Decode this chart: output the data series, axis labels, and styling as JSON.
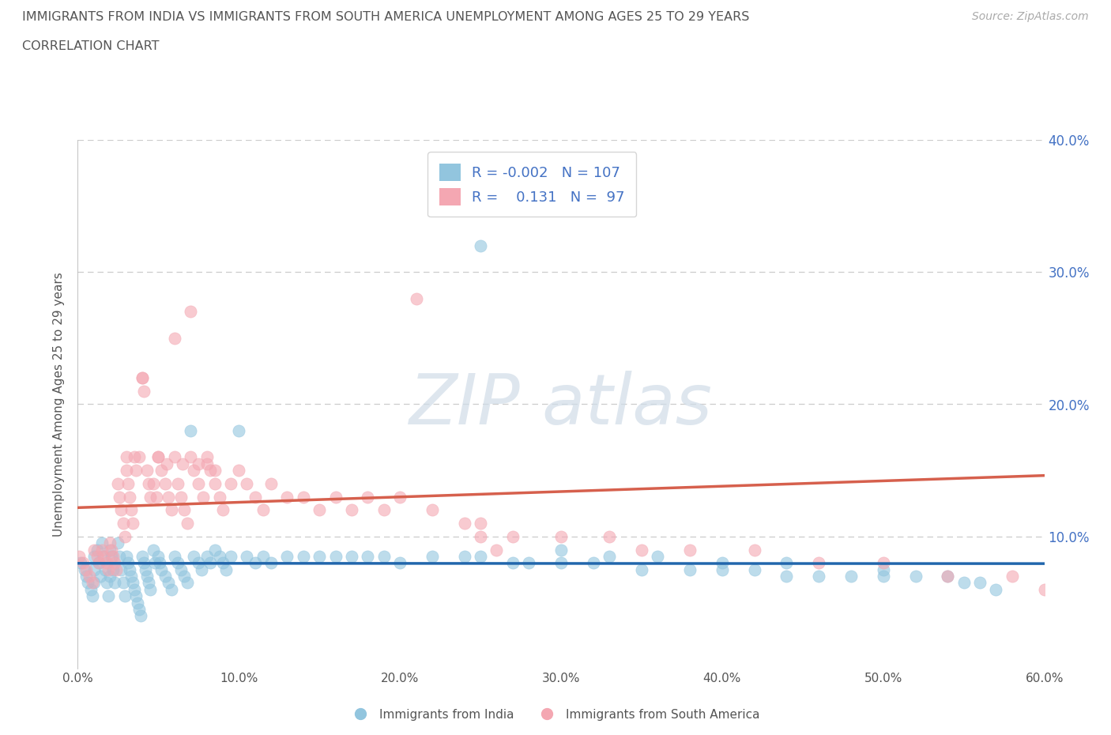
{
  "title_line1": "IMMIGRANTS FROM INDIA VS IMMIGRANTS FROM SOUTH AMERICA UNEMPLOYMENT AMONG AGES 25 TO 29 YEARS",
  "title_line2": "CORRELATION CHART",
  "source_text": "Source: ZipAtlas.com",
  "ylabel": "Unemployment Among Ages 25 to 29 years",
  "xlim": [
    0.0,
    0.6
  ],
  "ylim": [
    0.0,
    0.4
  ],
  "xticks": [
    0.0,
    0.1,
    0.2,
    0.3,
    0.4,
    0.5,
    0.6
  ],
  "yticks": [
    0.0,
    0.1,
    0.2,
    0.3,
    0.4
  ],
  "india_color": "#92c5de",
  "south_america_color": "#f4a7b2",
  "india_R": -0.002,
  "india_N": 107,
  "south_america_R": 0.131,
  "south_america_N": 97,
  "india_trend_color": "#2166ac",
  "south_america_trend_color": "#d6604d",
  "legend_india_label": "Immigrants from India",
  "legend_sa_label": "Immigrants from South America",
  "background_color": "#ffffff",
  "grid_color": "#cccccc",
  "tick_color": "#4472c4",
  "india_x": [
    0.002,
    0.004,
    0.005,
    0.006,
    0.008,
    0.009,
    0.01,
    0.01,
    0.01,
    0.012,
    0.013,
    0.014,
    0.015,
    0.016,
    0.017,
    0.018,
    0.019,
    0.02,
    0.02,
    0.021,
    0.022,
    0.023,
    0.025,
    0.026,
    0.027,
    0.028,
    0.029,
    0.03,
    0.031,
    0.032,
    0.033,
    0.034,
    0.035,
    0.036,
    0.037,
    0.038,
    0.039,
    0.04,
    0.041,
    0.042,
    0.043,
    0.044,
    0.045,
    0.047,
    0.048,
    0.05,
    0.051,
    0.052,
    0.054,
    0.056,
    0.058,
    0.06,
    0.062,
    0.064,
    0.066,
    0.068,
    0.07,
    0.072,
    0.075,
    0.077,
    0.08,
    0.082,
    0.085,
    0.088,
    0.09,
    0.092,
    0.095,
    0.1,
    0.105,
    0.11,
    0.115,
    0.12,
    0.13,
    0.14,
    0.15,
    0.16,
    0.17,
    0.18,
    0.19,
    0.2,
    0.22,
    0.24,
    0.25,
    0.27,
    0.28,
    0.3,
    0.32,
    0.35,
    0.38,
    0.4,
    0.42,
    0.44,
    0.46,
    0.48,
    0.5,
    0.52,
    0.54,
    0.55,
    0.56,
    0.57,
    0.25,
    0.3,
    0.33,
    0.36,
    0.4,
    0.44,
    0.5
  ],
  "india_y": [
    0.08,
    0.075,
    0.07,
    0.065,
    0.06,
    0.055,
    0.085,
    0.075,
    0.065,
    0.09,
    0.08,
    0.07,
    0.095,
    0.085,
    0.075,
    0.065,
    0.055,
    0.09,
    0.07,
    0.085,
    0.075,
    0.065,
    0.095,
    0.085,
    0.075,
    0.065,
    0.055,
    0.085,
    0.08,
    0.075,
    0.07,
    0.065,
    0.06,
    0.055,
    0.05,
    0.045,
    0.04,
    0.085,
    0.08,
    0.075,
    0.07,
    0.065,
    0.06,
    0.09,
    0.08,
    0.085,
    0.08,
    0.075,
    0.07,
    0.065,
    0.06,
    0.085,
    0.08,
    0.075,
    0.07,
    0.065,
    0.18,
    0.085,
    0.08,
    0.075,
    0.085,
    0.08,
    0.09,
    0.085,
    0.08,
    0.075,
    0.085,
    0.18,
    0.085,
    0.08,
    0.085,
    0.08,
    0.085,
    0.085,
    0.085,
    0.085,
    0.085,
    0.085,
    0.085,
    0.08,
    0.085,
    0.085,
    0.085,
    0.08,
    0.08,
    0.08,
    0.08,
    0.075,
    0.075,
    0.075,
    0.075,
    0.07,
    0.07,
    0.07,
    0.07,
    0.07,
    0.07,
    0.065,
    0.065,
    0.06,
    0.32,
    0.09,
    0.085,
    0.085,
    0.08,
    0.08,
    0.075
  ],
  "sa_x": [
    0.001,
    0.003,
    0.005,
    0.007,
    0.009,
    0.01,
    0.012,
    0.013,
    0.015,
    0.016,
    0.018,
    0.019,
    0.02,
    0.021,
    0.022,
    0.023,
    0.024,
    0.025,
    0.026,
    0.027,
    0.028,
    0.029,
    0.03,
    0.031,
    0.032,
    0.033,
    0.034,
    0.035,
    0.036,
    0.038,
    0.04,
    0.041,
    0.043,
    0.044,
    0.045,
    0.047,
    0.049,
    0.05,
    0.052,
    0.054,
    0.056,
    0.058,
    0.06,
    0.062,
    0.064,
    0.066,
    0.068,
    0.07,
    0.072,
    0.075,
    0.078,
    0.08,
    0.082,
    0.085,
    0.088,
    0.09,
    0.095,
    0.1,
    0.105,
    0.11,
    0.115,
    0.12,
    0.13,
    0.14,
    0.15,
    0.16,
    0.17,
    0.18,
    0.19,
    0.2,
    0.22,
    0.24,
    0.25,
    0.27,
    0.3,
    0.33,
    0.35,
    0.38,
    0.42,
    0.46,
    0.5,
    0.54,
    0.58,
    0.6,
    0.03,
    0.04,
    0.05,
    0.055,
    0.06,
    0.065,
    0.07,
    0.075,
    0.08,
    0.085,
    0.21,
    0.25,
    0.26
  ],
  "sa_y": [
    0.085,
    0.08,
    0.075,
    0.07,
    0.065,
    0.09,
    0.085,
    0.08,
    0.09,
    0.085,
    0.08,
    0.075,
    0.095,
    0.09,
    0.085,
    0.08,
    0.075,
    0.14,
    0.13,
    0.12,
    0.11,
    0.1,
    0.15,
    0.14,
    0.13,
    0.12,
    0.11,
    0.16,
    0.15,
    0.16,
    0.22,
    0.21,
    0.15,
    0.14,
    0.13,
    0.14,
    0.13,
    0.16,
    0.15,
    0.14,
    0.13,
    0.12,
    0.25,
    0.14,
    0.13,
    0.12,
    0.11,
    0.27,
    0.15,
    0.14,
    0.13,
    0.16,
    0.15,
    0.14,
    0.13,
    0.12,
    0.14,
    0.15,
    0.14,
    0.13,
    0.12,
    0.14,
    0.13,
    0.13,
    0.12,
    0.13,
    0.12,
    0.13,
    0.12,
    0.13,
    0.12,
    0.11,
    0.11,
    0.1,
    0.1,
    0.1,
    0.09,
    0.09,
    0.09,
    0.08,
    0.08,
    0.07,
    0.07,
    0.06,
    0.16,
    0.22,
    0.16,
    0.155,
    0.16,
    0.155,
    0.16,
    0.155,
    0.155,
    0.15,
    0.28,
    0.1,
    0.09
  ]
}
